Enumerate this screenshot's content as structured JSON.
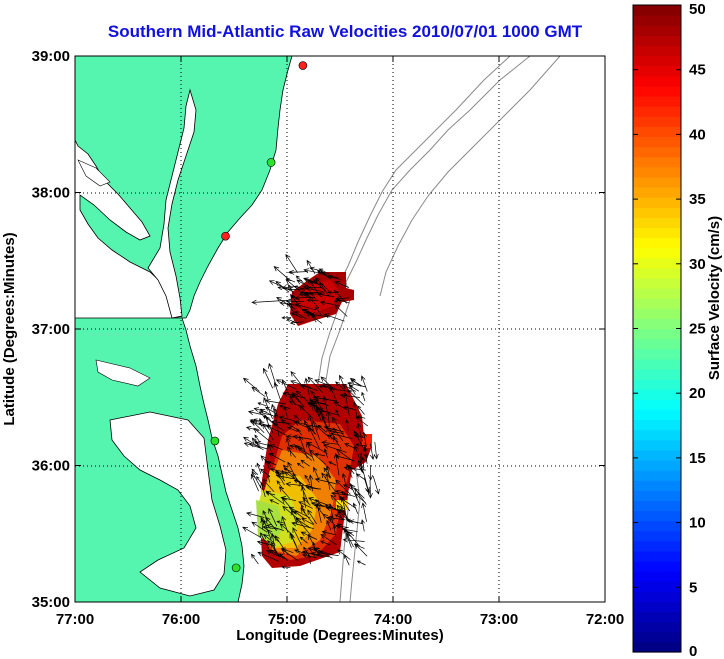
{
  "title": "Southern Mid-Atlantic Raw Velocities 2010/07/01 1000 GMT",
  "map": {
    "xlabel": "Longitude (Degrees:Minutes)",
    "ylabel": "Latitude (Degrees:Minutes)",
    "lon_range": [
      -77,
      -72
    ],
    "lat_range": [
      35,
      39
    ],
    "x_ticks": [
      {
        "value": -77,
        "label": "77:00"
      },
      {
        "value": -76,
        "label": "76:00"
      },
      {
        "value": -75,
        "label": "75:00"
      },
      {
        "value": -74,
        "label": "74:00"
      },
      {
        "value": -73,
        "label": "73:00"
      },
      {
        "value": -72,
        "label": "72:00"
      }
    ],
    "y_ticks": [
      {
        "value": 35,
        "label": "35:00"
      },
      {
        "value": 36,
        "label": "36:00"
      },
      {
        "value": 37,
        "label": "37:00"
      },
      {
        "value": 38,
        "label": "38:00"
      },
      {
        "value": 39,
        "label": "39:00"
      }
    ],
    "grid": "dotted",
    "land_color": "#55f5b0",
    "coastline_color": "#000000",
    "bathymetry_color": "#8a8a8a"
  },
  "colorbar": {
    "label": "Surface Velocity (cm/s)",
    "min": 0,
    "max": 50,
    "ticks": [
      {
        "value": 0,
        "label": "0"
      },
      {
        "value": 5,
        "label": "5"
      },
      {
        "value": 10,
        "label": "10"
      },
      {
        "value": 15,
        "label": "15"
      },
      {
        "value": 20,
        "label": "20"
      },
      {
        "value": 25,
        "label": "25"
      },
      {
        "value": 30,
        "label": "30"
      },
      {
        "value": 35,
        "label": "35"
      },
      {
        "value": 40,
        "label": "40"
      },
      {
        "value": 45,
        "label": "45"
      },
      {
        "value": 50,
        "label": "50"
      }
    ],
    "colormap": "jet"
  },
  "stations": [
    {
      "lon": -74.85,
      "lat": 38.93,
      "color": "#ff2020"
    },
    {
      "lon": -75.15,
      "lat": 38.22,
      "color": "#30e030"
    },
    {
      "lon": -75.58,
      "lat": 37.68,
      "color": "#ff2020"
    },
    {
      "lon": -75.68,
      "lat": 36.18,
      "color": "#30e030"
    },
    {
      "lon": -75.48,
      "lat": 35.25,
      "color": "#30e030"
    }
  ],
  "chart_data": {
    "type": "heatmap",
    "title": "Southern Mid-Atlantic Raw Velocities 2010/07/01 1000 GMT",
    "xlabel": "Longitude (Degrees:Minutes)",
    "ylabel": "Latitude (Degrees:Minutes)",
    "xlim": [
      -77,
      -72
    ],
    "ylim": [
      35,
      39
    ],
    "value_label": "Surface Velocity (cm/s)",
    "value_range": [
      0,
      50
    ],
    "regions": [
      {
        "name": "",
        "lon_range": [
          -74.95,
          -74.45
        ],
        "lat_range": [
          37.0,
          37.4
        ],
        "speed_min": 40,
        "speed_max": 50
      },
      {
        "name": "",
        "lon_range": [
          -75.45,
          -74.2
        ],
        "lat_range": [
          35.25,
          36.6
        ],
        "speed_min": 20,
        "speed_max": 50
      }
    ]
  }
}
